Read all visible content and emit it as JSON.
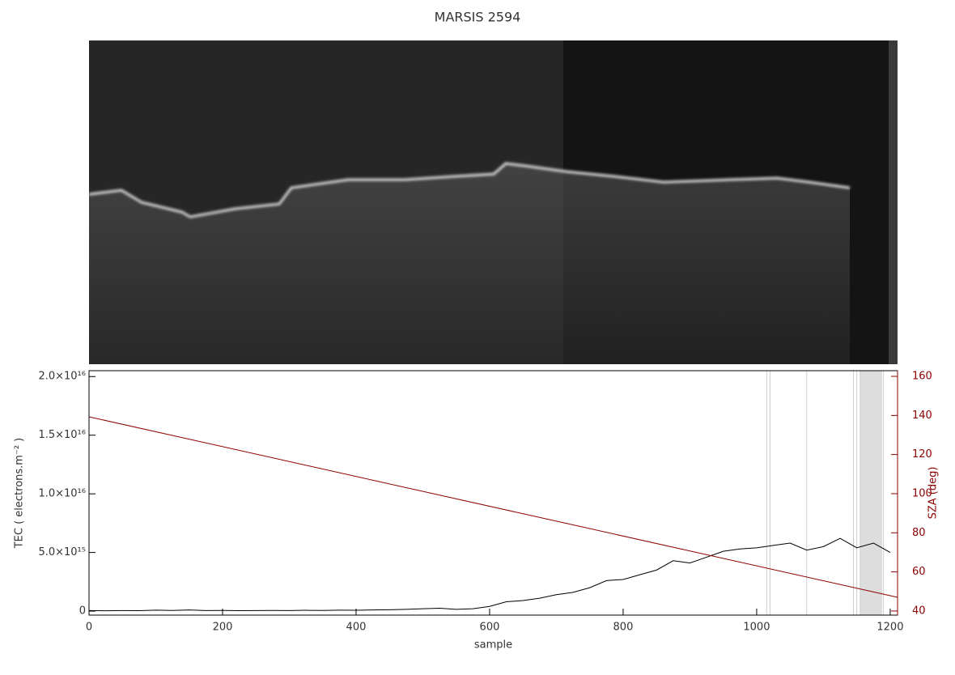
{
  "chart_data": {
    "type": "line",
    "title": "MARSIS 2594",
    "xlabel": "sample",
    "ylabel": "TEC ( electrons.m⁻² )",
    "y2label": "SZA (deg)",
    "xlim": [
      0,
      1211
    ],
    "xticks": [
      0,
      200,
      400,
      600,
      800,
      1000,
      1200
    ],
    "ylim": [
      -340000000000000.0,
      2.05e+16
    ],
    "yticks": [
      0,
      {
        "value": 5000000000000000.0,
        "label": "5.0×10¹⁵"
      },
      {
        "value": 1e+16,
        "label": "1.0×10¹⁶"
      },
      {
        "value": 1.5e+16,
        "label": "1.5×10¹⁶"
      },
      {
        "value": 2e+16,
        "label": "2.0×10¹⁶"
      }
    ],
    "y2lim": [
      37.9,
      162.9
    ],
    "y2ticks": [
      40,
      60,
      80,
      100,
      120,
      140,
      160
    ],
    "y2color": "#8b0000",
    "highlight_x": [
      1015,
      1020,
      1075,
      1145,
      1150,
      1155,
      1190
    ],
    "highlight_span": [
      1155,
      1188
    ],
    "series": [
      {
        "name": "TEC",
        "color": "#000000",
        "x": [
          0,
          25,
          50,
          75,
          100,
          125,
          150,
          175,
          200,
          225,
          250,
          275,
          300,
          325,
          350,
          375,
          400,
          425,
          450,
          475,
          500,
          525,
          550,
          575,
          600,
          625,
          650,
          675,
          700,
          725,
          750,
          775,
          800,
          825,
          850,
          875,
          900,
          925,
          950,
          975,
          1000,
          1025,
          1050,
          1075,
          1100,
          1125,
          1150,
          1175,
          1200
        ],
        "values": [
          50000000000000.0,
          30000000000000.0,
          50000000000000.0,
          40000000000000.0,
          80000000000000.0,
          60000000000000.0,
          100000000000000.0,
          50000000000000.0,
          60000000000000.0,
          40000000000000.0,
          50000000000000.0,
          60000000000000.0,
          50000000000000.0,
          70000000000000.0,
          60000000000000.0,
          80000000000000.0,
          70000000000000.0,
          100000000000000.0,
          120000000000000.0,
          150000000000000.0,
          200000000000000.0,
          250000000000000.0,
          150000000000000.0,
          200000000000000.0,
          400000000000000.0,
          800000000000000.0,
          900000000000000.0,
          1100000000000000.0,
          1400000000000000.0,
          1600000000000000.0,
          2000000000000000.0,
          2600000000000000.0,
          2700000000000000.0,
          3100000000000000.0,
          3500000000000000.0,
          4300000000000000.0,
          4100000000000000.0,
          4600000000000000.0,
          5100000000000000.0,
          5300000000000000.0,
          5400000000000000.0,
          5600000000000000.0,
          5800000000000000.0,
          5200000000000000.0,
          5500000000000000.0,
          6200000000000000.0,
          5400000000000000.0,
          5800000000000000.0,
          5000000000000000.0
        ]
      },
      {
        "name": "SZA",
        "color": "#8b0000",
        "axis": "y2",
        "x": [
          0,
          1211
        ],
        "values": [
          139.3,
          47.0
        ]
      }
    ]
  }
}
